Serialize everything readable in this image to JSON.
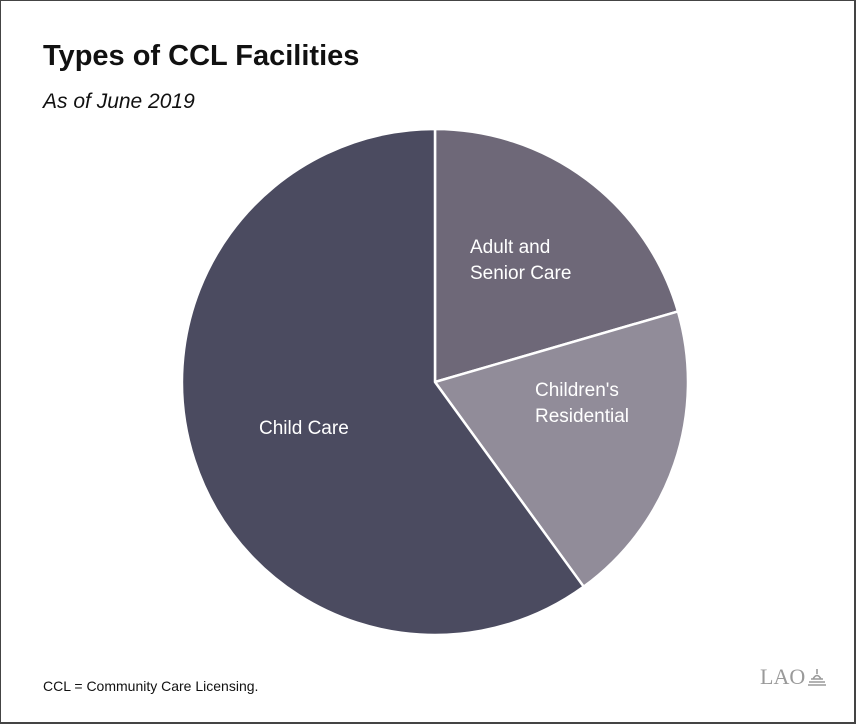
{
  "title": "Types of CCL Facilities",
  "subtitle": "As of June 2019",
  "footnote": "CCL = Community Care Licensing.",
  "logo_text": "LAO",
  "chart_data": {
    "type": "pie",
    "title": "Types of CCL Facilities",
    "subtitle": "As of June 2019",
    "slices": [
      {
        "label_lines": [
          "Adult and",
          "Senior Care"
        ],
        "value": 20.5,
        "color": "#6e6878"
      },
      {
        "label_lines": [
          "Children's",
          "Residential"
        ],
        "value": 19.5,
        "color": "#918c99"
      },
      {
        "label_lines": [
          "Child Care"
        ],
        "value": 60.0,
        "color": "#4b4b60"
      }
    ],
    "start_angle_deg": 0,
    "direction": "clockwise",
    "border_color": "#ffffff"
  }
}
